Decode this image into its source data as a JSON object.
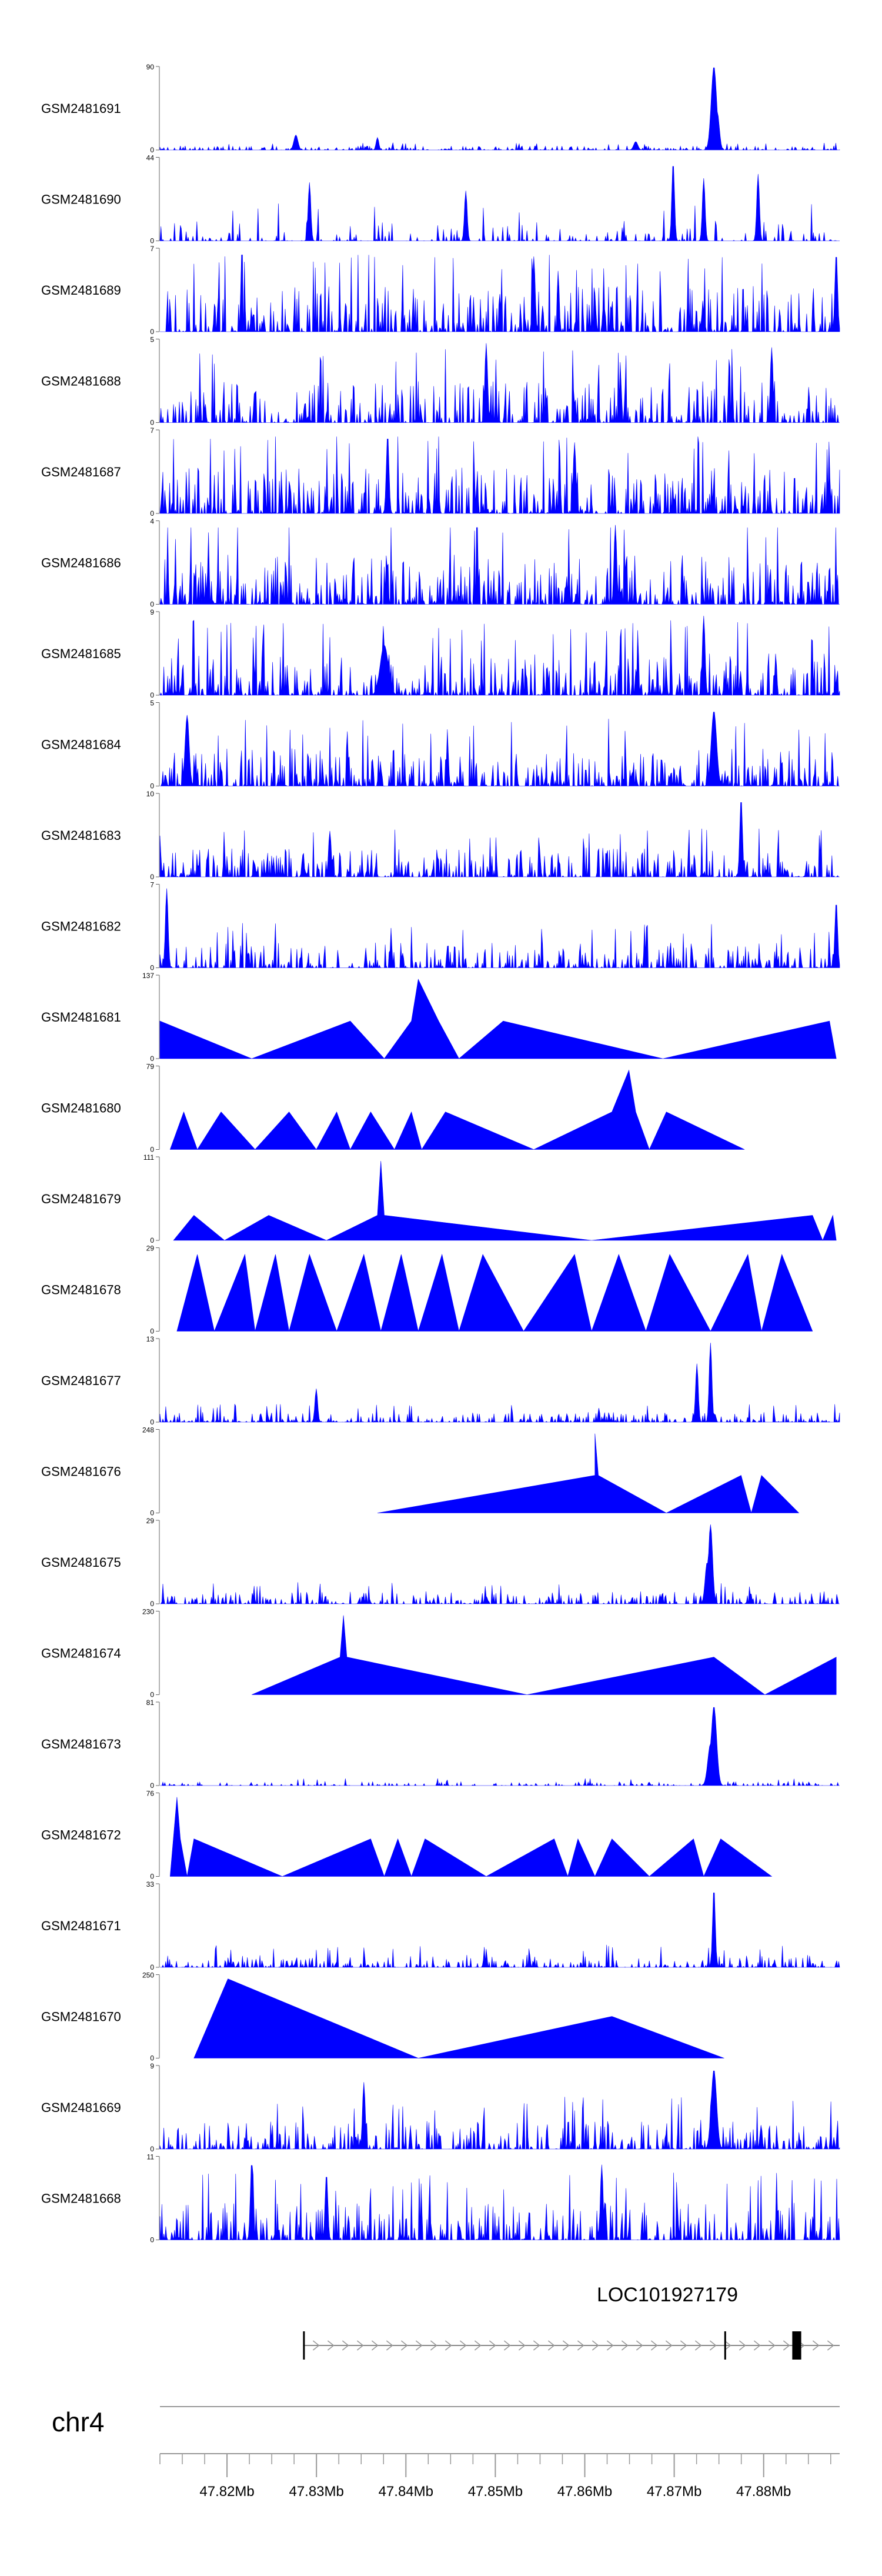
{
  "chart_data": {
    "type": "area",
    "title": "",
    "xlabel": "",
    "ylabel": "",
    "xlim": [
      47.8125,
      47.8885
    ],
    "x_unit": "Mb",
    "series_color": "#0000ff",
    "tracks": [
      {
        "name": "GSM2481691",
        "ymax": "90",
        "ymin": "0",
        "style": "noise",
        "level": 0.05,
        "density": 0.5,
        "peaks": [
          [
            0.815,
            1.0,
            0.004
          ],
          [
            0.82,
            0.45,
            0.003
          ],
          [
            0.2,
            0.18,
            0.003
          ],
          [
            0.32,
            0.15,
            0.002
          ],
          [
            0.7,
            0.1,
            0.003
          ]
        ]
      },
      {
        "name": "GSM2481690",
        "ymax": "44",
        "ymin": "0",
        "style": "noise",
        "level": 0.25,
        "density": 0.3,
        "peaks": [
          [
            0.755,
            0.95,
            0.002
          ],
          [
            0.22,
            0.7,
            0.002
          ],
          [
            0.8,
            0.75,
            0.002
          ],
          [
            0.88,
            0.8,
            0.002
          ],
          [
            0.45,
            0.6,
            0.002
          ]
        ]
      },
      {
        "name": "GSM2481689",
        "ymax": "7",
        "ymin": "0",
        "style": "noise",
        "level": 0.55,
        "density": 0.55,
        "peaks": [
          [
            0.995,
            0.95,
            0.002
          ],
          [
            0.55,
            0.9,
            0.002
          ]
        ]
      },
      {
        "name": "GSM2481688",
        "ymax": "5",
        "ymin": "0",
        "style": "noise",
        "level": 0.5,
        "density": 0.5,
        "peaks": [
          [
            0.48,
            0.95,
            0.002
          ],
          [
            0.9,
            0.9,
            0.002
          ]
        ]
      },
      {
        "name": "GSM2481687",
        "ymax": "7",
        "ymin": "0",
        "style": "noise",
        "level": 0.55,
        "density": 0.6,
        "peaks": [
          [
            0.335,
            0.95,
            0.002
          ],
          [
            0.61,
            0.85,
            0.002
          ]
        ]
      },
      {
        "name": "GSM2481686",
        "ymax": "4",
        "ymin": "0",
        "style": "noise",
        "level": 0.6,
        "density": 0.65,
        "peaks": [
          [
            0.67,
            0.95,
            0.002
          ]
        ]
      },
      {
        "name": "GSM2481685",
        "ymax": "9",
        "ymin": "0",
        "style": "noise",
        "level": 0.5,
        "density": 0.6,
        "peaks": [
          [
            0.8,
            0.95,
            0.002
          ],
          [
            0.33,
            0.6,
            0.006
          ]
        ]
      },
      {
        "name": "GSM2481684",
        "ymax": "5",
        "ymin": "0",
        "style": "noise",
        "level": 0.45,
        "density": 0.6,
        "peaks": [
          [
            0.815,
            0.9,
            0.004
          ],
          [
            0.04,
            0.85,
            0.003
          ]
        ]
      },
      {
        "name": "GSM2481683",
        "ymax": "10",
        "ymin": "0",
        "style": "noise",
        "level": 0.35,
        "density": 0.55,
        "peaks": [
          [
            0.855,
            0.95,
            0.002
          ],
          [
            0.25,
            0.55,
            0.002
          ]
        ]
      },
      {
        "name": "GSM2481682",
        "ymax": "7",
        "ymin": "0",
        "style": "noise",
        "level": 0.3,
        "density": 0.5,
        "peaks": [
          [
            0.01,
            0.95,
            0.002
          ],
          [
            0.995,
            0.8,
            0.002
          ]
        ]
      },
      {
        "name": "GSM2481681",
        "ymax": "137",
        "ymin": "0",
        "style": "poly",
        "points": [
          [
            0.0,
            0.45
          ],
          [
            0.135,
            0.0
          ],
          [
            0.28,
            0.45
          ],
          [
            0.33,
            0.0
          ],
          [
            0.37,
            0.45
          ],
          [
            0.38,
            0.95
          ],
          [
            0.41,
            0.45
          ],
          [
            0.44,
            0.0
          ],
          [
            0.505,
            0.45
          ],
          [
            0.74,
            0.0
          ],
          [
            0.985,
            0.45
          ],
          [
            0.995,
            0.0
          ]
        ]
      },
      {
        "name": "GSM2481680",
        "ymax": "79",
        "ymin": "0",
        "style": "poly",
        "points": [
          [
            0.015,
            0.0
          ],
          [
            0.035,
            0.45
          ],
          [
            0.055,
            0.0
          ],
          [
            0.09,
            0.45
          ],
          [
            0.14,
            0.0
          ],
          [
            0.19,
            0.45
          ],
          [
            0.23,
            0.0
          ],
          [
            0.26,
            0.45
          ],
          [
            0.28,
            0.0
          ],
          [
            0.31,
            0.45
          ],
          [
            0.345,
            0.0
          ],
          [
            0.37,
            0.45
          ],
          [
            0.385,
            0.0
          ],
          [
            0.42,
            0.45
          ],
          [
            0.55,
            0.0
          ],
          [
            0.665,
            0.45
          ],
          [
            0.69,
            0.95
          ],
          [
            0.7,
            0.45
          ],
          [
            0.72,
            0.0
          ],
          [
            0.745,
            0.45
          ],
          [
            0.86,
            0.0
          ]
        ]
      },
      {
        "name": "GSM2481679",
        "ymax": "111",
        "ymin": "0",
        "style": "poly",
        "points": [
          [
            0.02,
            0.0
          ],
          [
            0.05,
            0.3
          ],
          [
            0.095,
            0.0
          ],
          [
            0.16,
            0.3
          ],
          [
            0.245,
            0.0
          ],
          [
            0.32,
            0.3
          ],
          [
            0.325,
            0.95
          ],
          [
            0.33,
            0.3
          ],
          [
            0.635,
            0.0
          ],
          [
            0.96,
            0.3
          ],
          [
            0.975,
            0.0
          ],
          [
            0.99,
            0.3
          ],
          [
            0.995,
            0.0
          ]
        ]
      },
      {
        "name": "GSM2481678",
        "ymax": "29",
        "ymin": "0",
        "style": "poly",
        "points": [
          [
            0.025,
            0.0
          ],
          [
            0.055,
            0.92
          ],
          [
            0.08,
            0.0
          ],
          [
            0.125,
            0.92
          ],
          [
            0.14,
            0.0
          ],
          [
            0.17,
            0.92
          ],
          [
            0.19,
            0.0
          ],
          [
            0.22,
            0.92
          ],
          [
            0.26,
            0.0
          ],
          [
            0.3,
            0.92
          ],
          [
            0.325,
            0.0
          ],
          [
            0.355,
            0.92
          ],
          [
            0.38,
            0.0
          ],
          [
            0.415,
            0.92
          ],
          [
            0.44,
            0.0
          ],
          [
            0.475,
            0.92
          ],
          [
            0.535,
            0.0
          ],
          [
            0.61,
            0.92
          ],
          [
            0.635,
            0.0
          ],
          [
            0.675,
            0.92
          ],
          [
            0.715,
            0.0
          ],
          [
            0.75,
            0.92
          ],
          [
            0.81,
            0.0
          ],
          [
            0.865,
            0.92
          ],
          [
            0.885,
            0.0
          ],
          [
            0.915,
            0.92
          ],
          [
            0.96,
            0.0
          ]
        ]
      },
      {
        "name": "GSM2481677",
        "ymax": "13",
        "ymin": "0",
        "style": "noise",
        "level": 0.12,
        "density": 0.5,
        "peaks": [
          [
            0.81,
            0.95,
            0.002
          ],
          [
            0.79,
            0.7,
            0.002
          ],
          [
            0.23,
            0.4,
            0.002
          ]
        ]
      },
      {
        "name": "GSM2481676",
        "ymax": "248",
        "ymin": "0",
        "style": "poly",
        "points": [
          [
            0.32,
            0.0
          ],
          [
            0.64,
            0.45
          ],
          [
            0.64,
            0.95
          ],
          [
            0.645,
            0.45
          ],
          [
            0.745,
            0.0
          ],
          [
            0.855,
            0.45
          ],
          [
            0.87,
            0.0
          ],
          [
            0.885,
            0.45
          ],
          [
            0.94,
            0.0
          ]
        ]
      },
      {
        "name": "GSM2481675",
        "ymax": "29",
        "ymin": "0",
        "style": "noise",
        "level": 0.15,
        "density": 0.5,
        "peaks": [
          [
            0.81,
            0.95,
            0.003
          ],
          [
            0.805,
            0.5,
            0.003
          ]
        ]
      },
      {
        "name": "GSM2481674",
        "ymax": "230",
        "ymin": "0",
        "style": "poly",
        "points": [
          [
            0.135,
            0.0
          ],
          [
            0.265,
            0.45
          ],
          [
            0.27,
            0.95
          ],
          [
            0.275,
            0.45
          ],
          [
            0.54,
            0.0
          ],
          [
            0.815,
            0.45
          ],
          [
            0.89,
            0.0
          ],
          [
            0.995,
            0.45
          ],
          [
            0.995,
            0.0
          ]
        ]
      },
      {
        "name": "GSM2481673",
        "ymax": "81",
        "ymin": "0",
        "style": "noise",
        "level": 0.05,
        "density": 0.35,
        "peaks": [
          [
            0.815,
            0.95,
            0.004
          ],
          [
            0.81,
            0.5,
            0.004
          ]
        ]
      },
      {
        "name": "GSM2481672",
        "ymax": "76",
        "ymin": "0",
        "style": "poly",
        "points": [
          [
            0.015,
            0.0
          ],
          [
            0.025,
            0.95
          ],
          [
            0.03,
            0.45
          ],
          [
            0.04,
            0.0
          ],
          [
            0.05,
            0.45
          ],
          [
            0.18,
            0.0
          ],
          [
            0.31,
            0.45
          ],
          [
            0.33,
            0.0
          ],
          [
            0.35,
            0.45
          ],
          [
            0.37,
            0.0
          ],
          [
            0.39,
            0.45
          ],
          [
            0.48,
            0.0
          ],
          [
            0.58,
            0.45
          ],
          [
            0.6,
            0.0
          ],
          [
            0.615,
            0.45
          ],
          [
            0.64,
            0.0
          ],
          [
            0.665,
            0.45
          ],
          [
            0.72,
            0.0
          ],
          [
            0.785,
            0.45
          ],
          [
            0.8,
            0.0
          ],
          [
            0.825,
            0.45
          ],
          [
            0.9,
            0.0
          ]
        ]
      },
      {
        "name": "GSM2481671",
        "ymax": "33",
        "ymin": "0",
        "style": "noise",
        "level": 0.15,
        "density": 0.45,
        "peaks": [
          [
            0.815,
            0.95,
            0.002
          ]
        ]
      },
      {
        "name": "GSM2481670",
        "ymax": "250",
        "ymin": "0",
        "style": "poly",
        "points": [
          [
            0.05,
            0.0
          ],
          [
            0.1,
            0.95
          ],
          [
            0.38,
            0.0
          ],
          [
            0.665,
            0.5
          ],
          [
            0.83,
            0.0
          ]
        ]
      },
      {
        "name": "GSM2481669",
        "ymax": "9",
        "ymin": "0",
        "style": "noise",
        "level": 0.35,
        "density": 0.55,
        "peaks": [
          [
            0.815,
            0.95,
            0.004
          ],
          [
            0.3,
            0.8,
            0.002
          ]
        ]
      },
      {
        "name": "GSM2481668",
        "ymax": "11",
        "ymin": "0",
        "style": "noise",
        "level": 0.45,
        "density": 0.55,
        "peaks": [
          [
            0.135,
            0.95,
            0.002
          ],
          [
            0.65,
            0.9,
            0.002
          ],
          [
            0.245,
            0.8,
            0.002
          ]
        ]
      }
    ],
    "gene": {
      "name": "LOC101927179",
      "start": 47.8285,
      "end": 47.891,
      "strand": "+",
      "exons": [
        [
          47.8285,
          47.8287
        ],
        [
          47.8756,
          47.8758
        ],
        [
          47.8832,
          47.8842
        ]
      ]
    },
    "chromosome": "chr4",
    "tick_labels": [
      "47.82Mb",
      "47.83Mb",
      "47.84Mb",
      "47.85Mb",
      "47.86Mb",
      "47.87Mb",
      "47.88Mb"
    ],
    "tick_values": [
      47.82,
      47.83,
      47.84,
      47.85,
      47.86,
      47.87,
      47.88
    ],
    "minor_tick_step": 0.0025
  }
}
